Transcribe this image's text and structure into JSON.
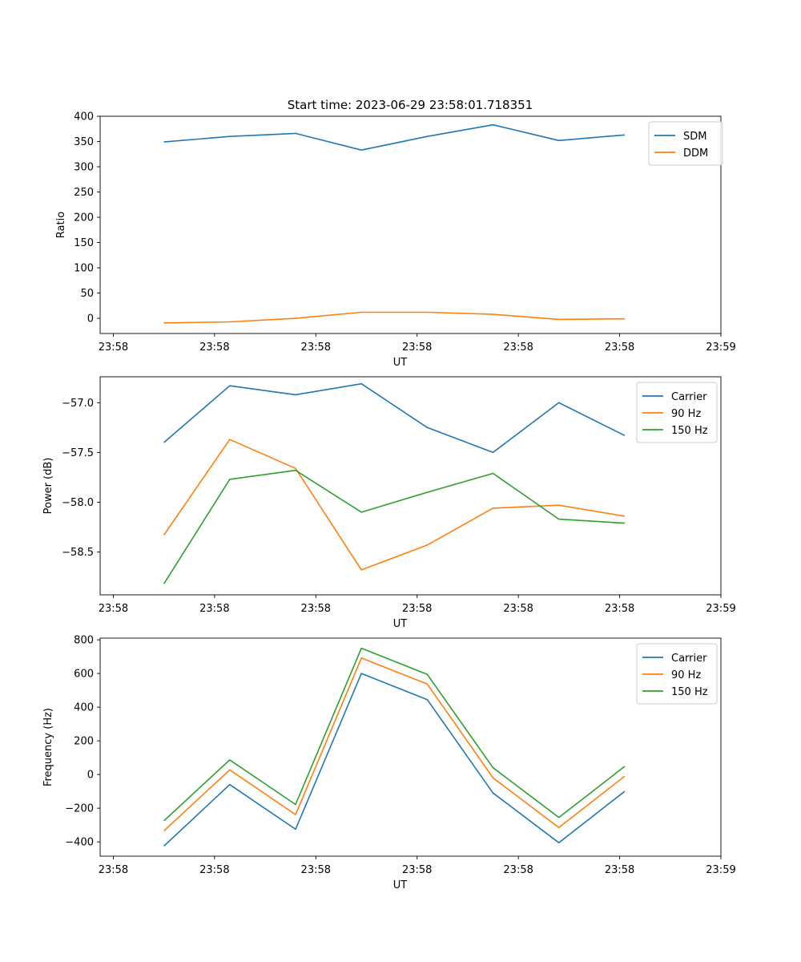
{
  "figure_title": "Start time: 2023-06-29 23:58:01.718351",
  "chart_data": [
    {
      "type": "line",
      "title": "Start time: 2023-06-29 23:58:01.718351",
      "xlabel": "UT",
      "ylabel": "Ratio",
      "x_ticks": [
        "23:58",
        "23:58",
        "23:58",
        "23:58",
        "23:58",
        "23:58",
        "23:59"
      ],
      "ylim": [
        -30,
        400
      ],
      "y_ticks": [
        0,
        50,
        100,
        150,
        200,
        250,
        300,
        350,
        400
      ],
      "legend_position": "top-right",
      "x": [
        0.5,
        1.15,
        1.8,
        2.45,
        3.1,
        3.75,
        4.4,
        5.05
      ],
      "xlim": [
        -0.13,
        6.0
      ],
      "series": [
        {
          "name": "SDM",
          "color": "#1f77b4",
          "values": [
            349,
            360,
            366,
            333,
            360,
            383,
            352,
            363
          ]
        },
        {
          "name": "DDM",
          "color": "#ff7f0e",
          "values": [
            -9,
            -7,
            0,
            12,
            12,
            8,
            -2,
            -1
          ]
        }
      ]
    },
    {
      "type": "line",
      "xlabel": "UT",
      "ylabel": "Power (dB)",
      "x_ticks": [
        "23:58",
        "23:58",
        "23:58",
        "23:58",
        "23:58",
        "23:58",
        "23:59"
      ],
      "ylim": [
        -58.93,
        -56.74
      ],
      "y_ticks": [
        -58.5,
        -58.0,
        -57.5,
        -57.0
      ],
      "y_tick_labels": [
        "−58.5",
        "−58.0",
        "−57.5",
        "−57.0"
      ],
      "legend_position": "top-right",
      "x": [
        0.5,
        1.15,
        1.8,
        2.45,
        3.1,
        3.75,
        4.4,
        5.05
      ],
      "xlim": [
        -0.13,
        6.0
      ],
      "series": [
        {
          "name": "Carrier",
          "color": "#1f77b4",
          "values": [
            -57.4,
            -56.83,
            -56.92,
            -56.81,
            -57.25,
            -57.5,
            -57.0,
            -57.33
          ]
        },
        {
          "name": "90 Hz",
          "color": "#ff7f0e",
          "values": [
            -58.33,
            -57.37,
            -57.66,
            -58.68,
            -58.43,
            -58.06,
            -58.03,
            -58.14
          ]
        },
        {
          "name": "150 Hz",
          "color": "#2ca02c",
          "values": [
            -58.82,
            -57.77,
            -57.68,
            -58.1,
            -57.9,
            -57.71,
            -58.17,
            -58.21
          ]
        }
      ]
    },
    {
      "type": "line",
      "xlabel": "UT",
      "ylabel": "Frequency (Hz)",
      "x_ticks": [
        "23:58",
        "23:58",
        "23:58",
        "23:58",
        "23:58",
        "23:58",
        "23:59"
      ],
      "ylim": [
        -485,
        810
      ],
      "y_ticks": [
        -400,
        -200,
        0,
        200,
        400,
        600,
        800
      ],
      "y_tick_labels": [
        "−400",
        "−200",
        "0",
        "200",
        "400",
        "600",
        "800"
      ],
      "legend_position": "top-right",
      "x": [
        0.5,
        1.15,
        1.8,
        2.45,
        3.1,
        3.75,
        4.4,
        5.05
      ],
      "xlim": [
        -0.13,
        6.0
      ],
      "series": [
        {
          "name": "Carrier",
          "color": "#1f77b4",
          "values": [
            -425,
            -60,
            -325,
            600,
            445,
            -110,
            -405,
            -100
          ]
        },
        {
          "name": "90 Hz",
          "color": "#ff7f0e",
          "values": [
            -335,
            28,
            -238,
            692,
            537,
            -20,
            -315,
            -10
          ]
        },
        {
          "name": "150 Hz",
          "color": "#2ca02c",
          "values": [
            -275,
            87,
            -178,
            750,
            595,
            40,
            -255,
            48
          ]
        }
      ]
    }
  ]
}
